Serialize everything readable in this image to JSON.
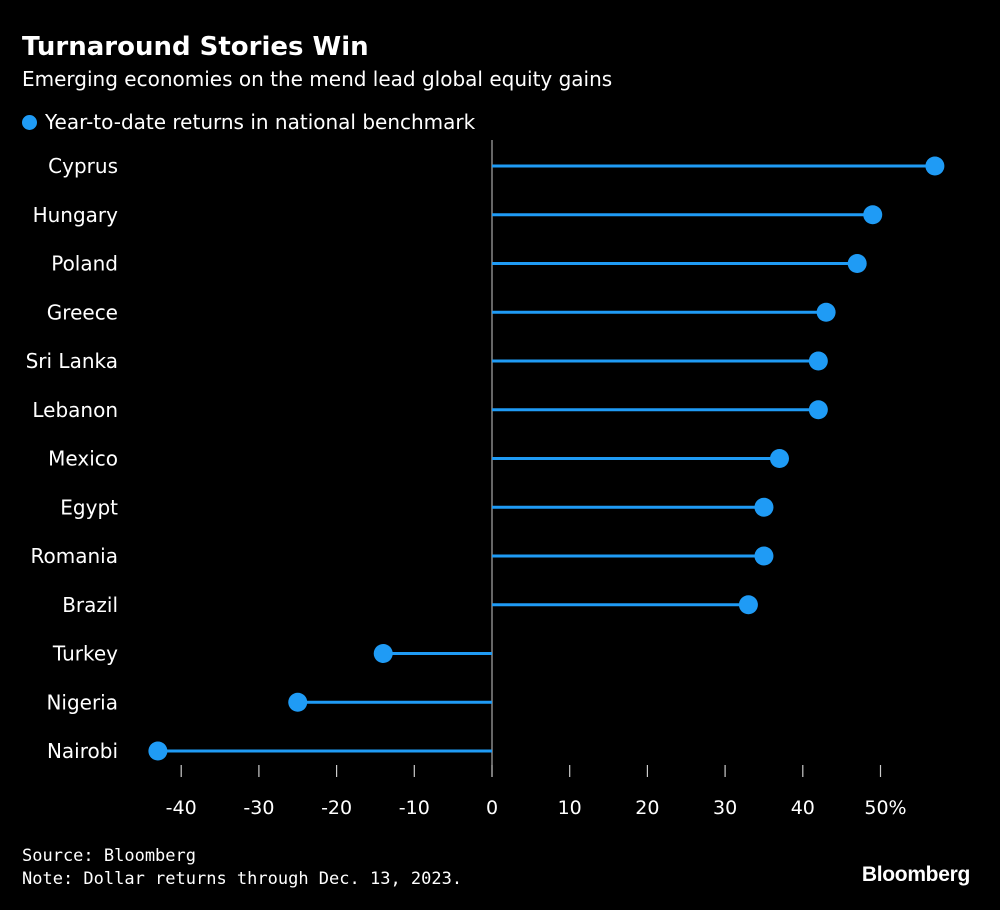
{
  "colors": {
    "background": "#000000",
    "text": "#ffffff",
    "series": "#1f9bf5",
    "axis": "#888888"
  },
  "chart_data": {
    "type": "lollipop",
    "title": "Turnaround Stories Win",
    "subtitle": "Emerging economies on the mend lead global equity gains",
    "legend": {
      "label": "Year-to-date returns in national benchmark",
      "placement": "top-left"
    },
    "categories": [
      "Cyprus",
      "Hungary",
      "Poland",
      "Greece",
      "Sri Lanka",
      "Lebanon",
      "Mexico",
      "Egypt",
      "Romania",
      "Brazil",
      "Turkey",
      "Nigeria",
      "Nairobi"
    ],
    "series": [
      {
        "values": [
          57,
          49,
          47,
          43,
          42,
          42,
          37,
          35,
          35,
          33,
          -14,
          -25,
          -43
        ]
      }
    ],
    "xlim": [
      -45,
      58
    ],
    "x_ticks": [
      -40,
      -30,
      -20,
      -10,
      0,
      10,
      20,
      30,
      40,
      50
    ],
    "x_tick_labels": [
      "-40",
      "-30",
      "-20",
      "-10",
      "0",
      "10",
      "20",
      "30",
      "40",
      "50%"
    ],
    "grid": false
  },
  "footer": {
    "source": "Source: Bloomberg",
    "note": "Note: Dollar returns through Dec. 13, 2023.",
    "brand": "Bloomberg"
  }
}
